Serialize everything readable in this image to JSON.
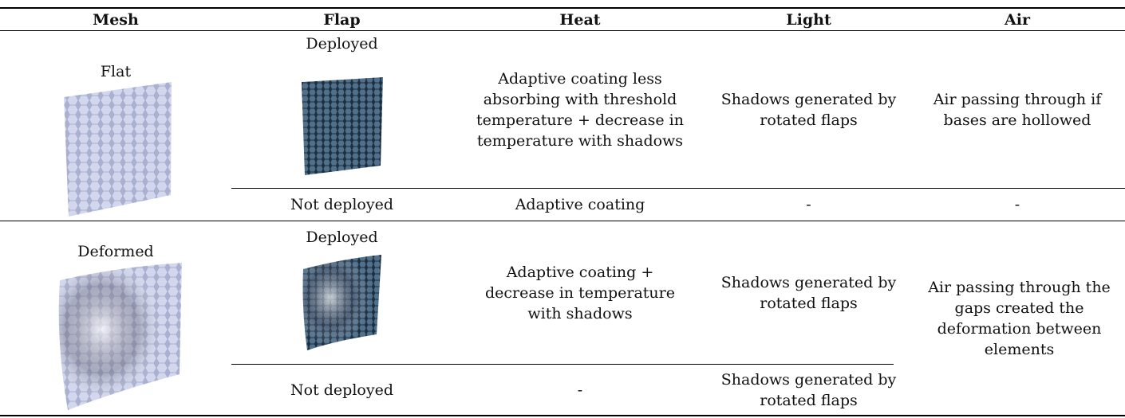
{
  "table": {
    "headers": [
      "Mesh",
      "Flap",
      "Heat",
      "Light",
      "Air"
    ],
    "rows": [
      {
        "mesh": "Flat",
        "flap": "Deployed",
        "heat": "Adaptive coating less absorbing with threshold temperature + decrease in temperature with shadows",
        "light": "Shadows generated by rotated flaps",
        "air": "Air passing through if bases are hollowed"
      },
      {
        "flap": "Not deployed",
        "heat": "Adaptive coating",
        "light": "-",
        "air": "-"
      },
      {
        "mesh": "Deformed",
        "flap": "Deployed",
        "heat": "Adaptive coating + decrease in temperature with shadows",
        "light": "Shadows generated by rotated flaps",
        "air": "Air passing through the gaps created the deformation between elements"
      },
      {
        "flap": "Not deployed",
        "heat": "-",
        "light": "Shadows generated by rotated flaps"
      }
    ]
  }
}
